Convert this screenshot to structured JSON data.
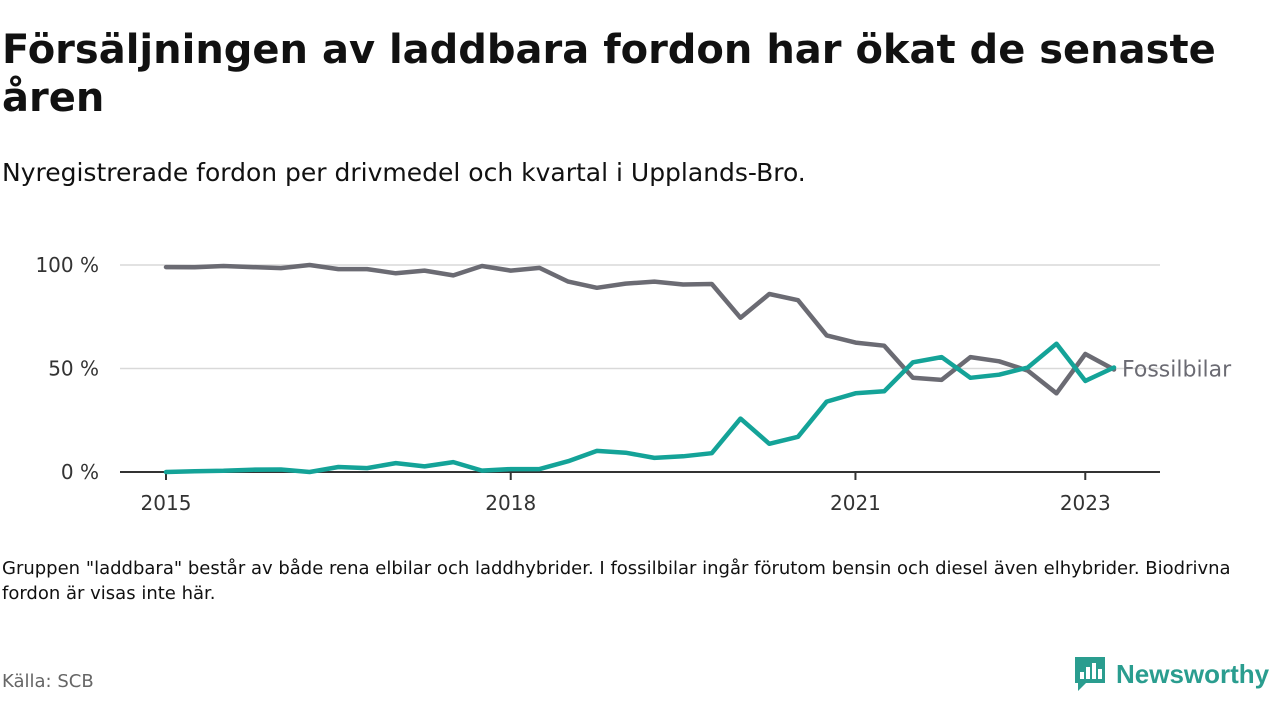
{
  "title": "Försäljningen av laddbara fordon har ökat de senaste åren",
  "subtitle": "Nyregistrerade fordon per drivmedel och kvartal i Upplands-Bro.",
  "note": "Gruppen \"laddbara\" består av både rena elbilar och laddhybrider. I fossilbilar ingår förutom bensin och diesel även elhybrider. Biodrivna fordon är visas inte här.",
  "source": "Källa: SCB",
  "logo": {
    "text": "Newsworthy",
    "icon": "newsworthy-logo-icon"
  },
  "colors": {
    "fossil": "#6b6b73",
    "laddbara": "#14a398",
    "grid": "#d9d9d9",
    "axis": "#333333"
  },
  "chart_data": {
    "type": "line",
    "x_start": "2015 Q1",
    "ylim": [
      0,
      100
    ],
    "yticks": [
      {
        "value": 0,
        "label": "0 %"
      },
      {
        "value": 50,
        "label": "50 %"
      },
      {
        "value": 100,
        "label": "100 %"
      }
    ],
    "xticks": [
      {
        "index": 0,
        "label": "2015"
      },
      {
        "index": 12,
        "label": "2018"
      },
      {
        "index": 24,
        "label": "2021"
      },
      {
        "index": 32,
        "label": "2023"
      }
    ],
    "series": [
      {
        "name": "Fossilbilar",
        "key": "fossil",
        "labeled": true,
        "values": [
          99,
          98.9,
          99.5,
          99,
          98.5,
          100,
          98,
          98,
          96,
          97.3,
          95,
          99.5,
          97.3,
          98.6,
          92,
          89,
          91,
          92,
          90.6,
          90.8,
          74.5,
          86,
          83,
          66,
          62.5,
          61,
          45.5,
          44.5,
          55.5,
          53.5,
          49,
          38,
          57,
          49.5
        ]
      },
      {
        "name": "Laddbara",
        "key": "laddbara",
        "labeled": false,
        "values": [
          0,
          0.4,
          0.6,
          1.1,
          1.2,
          0,
          2.4,
          1.9,
          4.3,
          2.7,
          4.8,
          0.7,
          1.4,
          1.4,
          5.2,
          10.2,
          9.3,
          6.8,
          7.6,
          9.1,
          25.8,
          13.6,
          17,
          34,
          38,
          39,
          53,
          55.5,
          45.5,
          47,
          50.5,
          62,
          44,
          50.5
        ]
      }
    ]
  }
}
